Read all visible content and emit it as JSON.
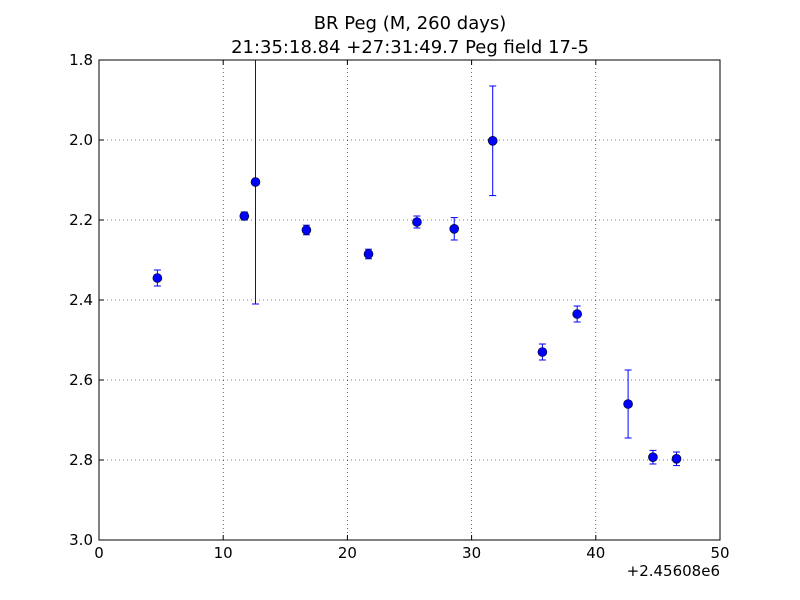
{
  "chart_data": {
    "type": "scatter",
    "title_line1": "BR Peg (M, 260 days)",
    "title_line2": "21:35:18.84 +27:31:49.7 Peg field 17-5",
    "xlabel": "",
    "ylabel": "",
    "x_offset_label": "+2.45608e6",
    "xlim": [
      0,
      50
    ],
    "ylim": [
      1.8,
      3.0
    ],
    "y_inverted": true,
    "grid": true,
    "x_ticks": [
      0,
      10,
      20,
      30,
      40,
      50
    ],
    "x_tick_labels": [
      "0",
      "10",
      "20",
      "30",
      "40",
      "50"
    ],
    "y_ticks": [
      1.8,
      2.0,
      2.2,
      2.4,
      2.6,
      2.8,
      3.0
    ],
    "y_tick_labels": [
      "1.8",
      "2.0",
      "2.2",
      "2.4",
      "2.6",
      "2.8",
      "3.0"
    ],
    "color": "#0000ff",
    "points": [
      {
        "x": 4.7,
        "y": 2.345,
        "err": 0.02
      },
      {
        "x": 11.7,
        "y": 2.19,
        "err": 0.01
      },
      {
        "x": 12.6,
        "y": 2.105,
        "err": 0.305
      },
      {
        "x": 16.7,
        "y": 2.225,
        "err": 0.012
      },
      {
        "x": 21.7,
        "y": 2.285,
        "err": 0.012
      },
      {
        "x": 25.6,
        "y": 2.205,
        "err": 0.015
      },
      {
        "x": 28.6,
        "y": 2.222,
        "err": 0.028
      },
      {
        "x": 31.7,
        "y": 2.002,
        "err": 0.137
      },
      {
        "x": 35.7,
        "y": 2.53,
        "err": 0.02
      },
      {
        "x": 38.5,
        "y": 2.435,
        "err": 0.02
      },
      {
        "x": 42.6,
        "y": 2.66,
        "err": 0.085
      },
      {
        "x": 44.6,
        "y": 2.793,
        "err": 0.017
      },
      {
        "x": 46.5,
        "y": 2.797,
        "err": 0.017
      }
    ]
  }
}
